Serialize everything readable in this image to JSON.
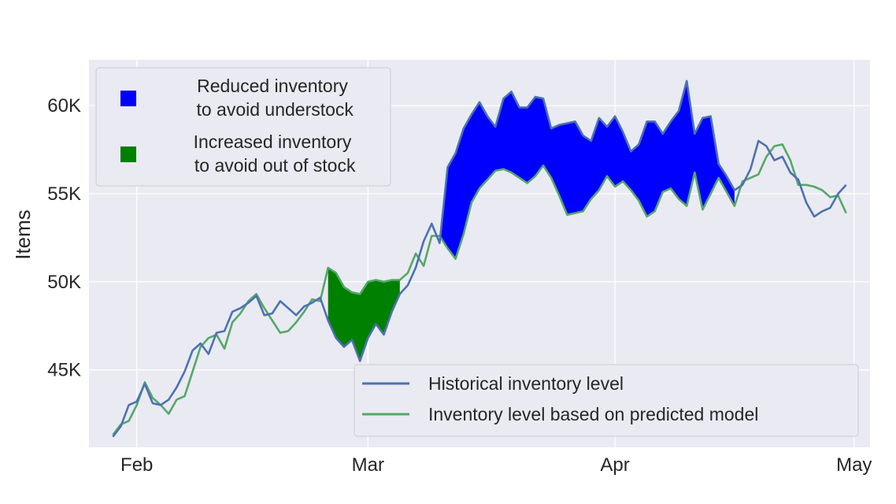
{
  "chart_data": {
    "type": "line",
    "title": "",
    "xlabel": "",
    "ylabel": "Items",
    "xlim": [
      "2024-01-26",
      "2024-05-03"
    ],
    "ylim": [
      40600,
      62600
    ],
    "grid": true,
    "x_ticks": [
      {
        "date": "2024-02-01",
        "label": "Feb"
      },
      {
        "date": "2024-03-01",
        "label": "Mar"
      },
      {
        "date": "2024-04-01",
        "label": "Apr"
      },
      {
        "date": "2024-05-01",
        "label": "May"
      }
    ],
    "y_ticks": [
      {
        "value": 45000,
        "label": "45K"
      },
      {
        "value": 50000,
        "label": "50K"
      },
      {
        "value": 55000,
        "label": "55K"
      },
      {
        "value": 60000,
        "label": "60K"
      }
    ],
    "x": [
      "2024-01-29",
      "2024-01-30",
      "2024-01-31",
      "2024-02-01",
      "2024-02-02",
      "2024-02-03",
      "2024-02-04",
      "2024-02-05",
      "2024-02-06",
      "2024-02-07",
      "2024-02-08",
      "2024-02-09",
      "2024-02-10",
      "2024-02-11",
      "2024-02-12",
      "2024-02-13",
      "2024-02-14",
      "2024-02-15",
      "2024-02-16",
      "2024-02-17",
      "2024-02-18",
      "2024-02-19",
      "2024-02-20",
      "2024-02-21",
      "2024-02-22",
      "2024-02-23",
      "2024-02-24",
      "2024-02-25",
      "2024-02-26",
      "2024-02-27",
      "2024-02-28",
      "2024-02-29",
      "2024-03-01",
      "2024-03-02",
      "2024-03-03",
      "2024-03-04",
      "2024-03-05",
      "2024-03-06",
      "2024-03-07",
      "2024-03-08",
      "2024-03-09",
      "2024-03-10",
      "2024-03-11",
      "2024-03-12",
      "2024-03-13",
      "2024-03-14",
      "2024-03-15",
      "2024-03-16",
      "2024-03-17",
      "2024-03-18",
      "2024-03-19",
      "2024-03-20",
      "2024-03-21",
      "2024-03-22",
      "2024-03-23",
      "2024-03-24",
      "2024-03-25",
      "2024-03-26",
      "2024-03-27",
      "2024-03-28",
      "2024-03-29",
      "2024-03-30",
      "2024-03-31",
      "2024-04-01",
      "2024-04-02",
      "2024-04-03",
      "2024-04-04",
      "2024-04-05",
      "2024-04-06",
      "2024-04-07",
      "2024-04-08",
      "2024-04-09",
      "2024-04-10",
      "2024-04-11",
      "2024-04-12",
      "2024-04-13",
      "2024-04-14",
      "2024-04-15",
      "2024-04-16",
      "2024-04-17",
      "2024-04-18",
      "2024-04-19",
      "2024-04-20",
      "2024-04-21",
      "2024-04-22",
      "2024-04-23",
      "2024-04-24",
      "2024-04-25",
      "2024-04-26",
      "2024-04-27",
      "2024-04-28",
      "2024-04-29",
      "2024-04-30"
    ],
    "series": [
      {
        "name": "Historical inventory level",
        "color": "#4c72b0",
        "values": [
          41200,
          41800,
          43000,
          43200,
          44200,
          43100,
          43000,
          43300,
          44000,
          44900,
          46100,
          46500,
          45900,
          47100,
          47200,
          48300,
          48500,
          48800,
          49200,
          48100,
          48200,
          48900,
          48500,
          48100,
          48600,
          48800,
          49100,
          47800,
          46800,
          46300,
          46700,
          45500,
          46800,
          47600,
          47000,
          48300,
          49300,
          49800,
          50800,
          52300,
          53300,
          52200,
          56500,
          57300,
          58700,
          59500,
          60200,
          59400,
          58800,
          60400,
          60800,
          59900,
          59900,
          60500,
          60400,
          58700,
          58900,
          59000,
          59100,
          58300,
          58000,
          59300,
          58800,
          59400,
          58500,
          57400,
          57800,
          59100,
          59100,
          58400,
          59100,
          59700,
          61400,
          58400,
          59300,
          59400,
          56700,
          56000,
          55200,
          55500,
          56400,
          58000,
          57700,
          56900,
          57100,
          56200,
          55800,
          54500,
          53700,
          54000,
          54200,
          55000,
          55500
        ]
      },
      {
        "name": "Inventory level based on predicted model",
        "color": "#55a868",
        "values": [
          41300,
          41900,
          42100,
          43000,
          44300,
          43400,
          43000,
          42500,
          43300,
          43500,
          44900,
          46300,
          46800,
          47000,
          46200,
          47700,
          48200,
          48900,
          49300,
          48500,
          47800,
          47100,
          47200,
          47700,
          48300,
          49000,
          48900,
          50800,
          50500,
          49700,
          49400,
          49300,
          50000,
          50100,
          50000,
          50100,
          50100,
          50500,
          51600,
          50900,
          52600,
          52600,
          51900,
          51300,
          52700,
          54500,
          55300,
          55800,
          56300,
          56400,
          56200,
          55900,
          55600,
          56000,
          56600,
          55900,
          54900,
          53800,
          53900,
          54000,
          54700,
          55200,
          56000,
          55400,
          55700,
          55200,
          54600,
          53700,
          54000,
          55100,
          55300,
          54700,
          54300,
          56200,
          54100,
          55000,
          55900,
          55100,
          54300,
          55700,
          55900,
          56100,
          57100,
          57700,
          57800,
          56900,
          55500,
          55500,
          55400,
          55200,
          54800,
          54900,
          53900
        ]
      }
    ],
    "legends": {
      "fill": [
        {
          "label": "Reduced inventory\n to avoid understock",
          "color": "#0000ff"
        },
        {
          "label": "Increased inventory\n to avoid out of stock",
          "color": "#008000"
        }
      ],
      "lines": [
        {
          "label": "Historical inventory level",
          "color": "#4c72b0"
        },
        {
          "label": "Inventory level based on predicted model",
          "color": "#55a868"
        }
      ]
    },
    "fill_regions": [
      {
        "label": "Increased inventory\n to avoid out of stock",
        "color": "#008000",
        "from": "2024-02-25",
        "to": "2024-03-05"
      },
      {
        "label": "Reduced inventory\n to avoid understock",
        "color": "#0000ff",
        "from": "2024-03-10",
        "to": "2024-04-16"
      }
    ]
  }
}
